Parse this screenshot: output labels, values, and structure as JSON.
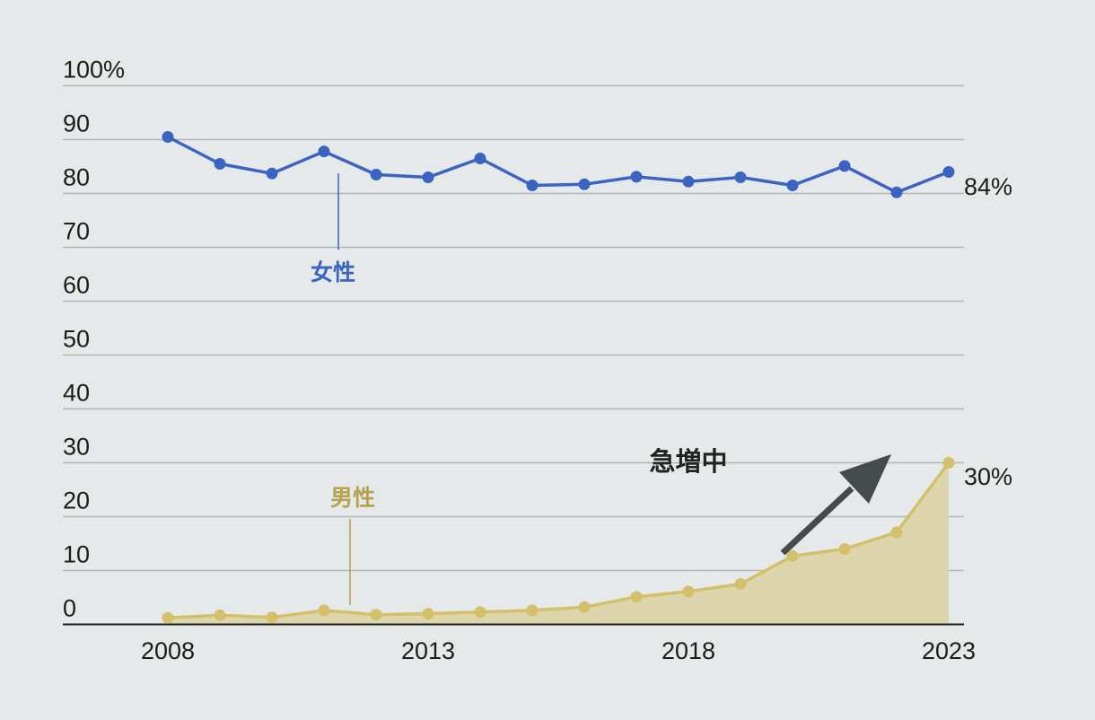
{
  "chart_data": {
    "type": "line",
    "x": [
      2008,
      2009,
      2010,
      2011,
      2012,
      2013,
      2014,
      2015,
      2016,
      2017,
      2018,
      2019,
      2020,
      2021,
      2022,
      2023
    ],
    "x_tick_labels": [
      "2008",
      "2013",
      "2018",
      "2023"
    ],
    "y_tick_labels": [
      "0",
      "10",
      "20",
      "30",
      "40",
      "50",
      "60",
      "70",
      "80",
      "90",
      "100%"
    ],
    "ylim": [
      0,
      100
    ],
    "grid": true,
    "series": [
      {
        "name": "女性",
        "color": "#3a63c2",
        "values": [
          90.5,
          85.5,
          83.7,
          87.8,
          83.5,
          83.0,
          86.5,
          81.5,
          81.7,
          83.1,
          82.2,
          83.0,
          81.5,
          85.1,
          80.2,
          84.0
        ],
        "end_label": "84%"
      },
      {
        "name": "男性",
        "color": "#d4c06a",
        "fill_color": "#ddd6ad",
        "values": [
          1.2,
          1.7,
          1.3,
          2.6,
          1.8,
          2.0,
          2.3,
          2.6,
          3.2,
          5.1,
          6.1,
          7.5,
          12.7,
          14.0,
          17.1,
          30.0
        ],
        "end_label": "30%"
      }
    ],
    "annotation": {
      "text": "急増中",
      "arrow_color": "#454b4a"
    }
  }
}
